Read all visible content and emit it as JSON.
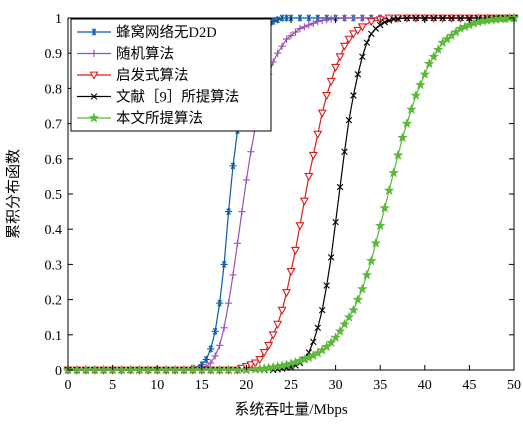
{
  "chart_data": {
    "type": "line",
    "xlabel": "系统吞吐量/Mbps",
    "ylabel": "累积分布函数",
    "xlim": [
      0,
      50
    ],
    "ylim": [
      0,
      1
    ],
    "xticks": [
      "0",
      "5",
      "10",
      "15",
      "20",
      "25",
      "30",
      "35",
      "40",
      "45",
      "50"
    ],
    "yticks": [
      "0",
      "0.1",
      "0.2",
      "0.3",
      "0.4",
      "0.5",
      "0.6",
      "0.7",
      "0.8",
      "0.9",
      "1"
    ],
    "grid": false,
    "legend_position": "top-left",
    "series": [
      {
        "name": "蜂窝网络无D2D",
        "color": "#0b5aa8",
        "marker": "asterisk",
        "x": [
          0,
          1,
          2,
          3,
          4,
          5,
          6,
          7,
          8,
          9,
          10,
          11,
          12,
          13,
          14,
          15,
          15.5,
          16,
          16.5,
          17,
          17.5,
          18,
          18.5,
          19,
          19.5,
          20,
          20.5,
          21,
          21.5,
          22,
          22.5,
          23,
          23.5,
          24,
          24.5,
          25,
          26,
          27,
          28,
          29,
          30,
          31,
          32,
          33,
          34,
          35,
          36,
          37,
          38,
          39,
          40,
          41,
          42,
          43,
          44,
          45,
          46,
          47,
          48,
          49,
          50
        ],
        "y": [
          0,
          0,
          0,
          0,
          0,
          0,
          0,
          0,
          0,
          0,
          0,
          0,
          0,
          0,
          0.005,
          0.015,
          0.03,
          0.06,
          0.11,
          0.19,
          0.3,
          0.45,
          0.58,
          0.68,
          0.76,
          0.83,
          0.88,
          0.92,
          0.95,
          0.97,
          0.98,
          0.99,
          0.995,
          1,
          1,
          1,
          1,
          1,
          1,
          1,
          1,
          1,
          1,
          1,
          1,
          1,
          1,
          1,
          1,
          1,
          1,
          1,
          1,
          1,
          1,
          1,
          1,
          1,
          1,
          1,
          1
        ]
      },
      {
        "name": "随机算法",
        "color": "#9a4fb4",
        "marker": "plus",
        "x": [
          0,
          1,
          2,
          3,
          4,
          5,
          6,
          7,
          8,
          9,
          10,
          11,
          12,
          13,
          14,
          15,
          15.5,
          16,
          16.5,
          17,
          17.5,
          18,
          18.5,
          19,
          19.5,
          20,
          20.5,
          21,
          21.5,
          22,
          22.5,
          23,
          23.5,
          24,
          24.5,
          25,
          25.5,
          26,
          26.5,
          27,
          27.5,
          28,
          28.5,
          29,
          29.5,
          30,
          31,
          32,
          33,
          34,
          35,
          36,
          37,
          38,
          39,
          40,
          41,
          42,
          43,
          44,
          45,
          46,
          47,
          48,
          49,
          50
        ],
        "y": [
          0,
          0,
          0,
          0,
          0,
          0,
          0,
          0,
          0,
          0,
          0,
          0,
          0,
          0,
          0,
          0.005,
          0.01,
          0.02,
          0.04,
          0.07,
          0.12,
          0.19,
          0.27,
          0.36,
          0.45,
          0.54,
          0.62,
          0.69,
          0.75,
          0.8,
          0.84,
          0.875,
          0.9,
          0.92,
          0.94,
          0.95,
          0.96,
          0.97,
          0.975,
          0.98,
          0.985,
          0.99,
          0.993,
          0.995,
          0.997,
          0.998,
          1,
          1,
          1,
          1,
          1,
          1,
          1,
          1,
          1,
          1,
          1,
          1,
          1,
          1,
          1,
          1,
          1,
          1,
          1,
          1
        ]
      },
      {
        "name": "启发式算法",
        "color": "#e01b1b",
        "marker": "triangle-down",
        "x": [
          0,
          1,
          2,
          3,
          4,
          5,
          6,
          7,
          8,
          9,
          10,
          11,
          12,
          13,
          14,
          15,
          16,
          17,
          18,
          19,
          19.5,
          20,
          20.5,
          21,
          21.5,
          22,
          22.5,
          23,
          23.5,
          24,
          24.5,
          25,
          25.5,
          26,
          26.5,
          27,
          27.5,
          28,
          28.5,
          29,
          29.5,
          30,
          30.5,
          31,
          31.5,
          32,
          32.5,
          33,
          34,
          35,
          36,
          37,
          38,
          39,
          40,
          41,
          42,
          43,
          44,
          45,
          46,
          47,
          48,
          49,
          50
        ],
        "y": [
          0,
          0,
          0,
          0,
          0,
          0,
          0,
          0,
          0,
          0,
          0,
          0,
          0,
          0,
          0,
          0,
          0,
          0,
          0,
          0,
          0.005,
          0.01,
          0.015,
          0.02,
          0.03,
          0.05,
          0.07,
          0.1,
          0.13,
          0.17,
          0.22,
          0.28,
          0.34,
          0.41,
          0.48,
          0.55,
          0.61,
          0.67,
          0.73,
          0.78,
          0.82,
          0.86,
          0.89,
          0.92,
          0.94,
          0.955,
          0.965,
          0.975,
          0.99,
          0.995,
          1,
          1,
          1,
          1,
          1,
          1,
          1,
          1,
          1,
          1,
          1,
          1,
          1,
          1,
          1
        ]
      },
      {
        "name": "文献［9］所提算法",
        "color": "#000000",
        "marker": "x",
        "x": [
          0,
          1,
          2,
          3,
          4,
          5,
          6,
          7,
          8,
          9,
          10,
          11,
          12,
          13,
          14,
          15,
          16,
          17,
          18,
          19,
          20,
          21,
          22,
          23,
          23.5,
          24,
          24.5,
          25,
          25.5,
          26,
          26.5,
          27,
          27.5,
          28,
          28.5,
          29,
          29.5,
          30,
          30.5,
          31,
          31.5,
          32,
          32.5,
          33,
          33.5,
          34,
          34.5,
          35,
          35.5,
          36,
          36.5,
          37,
          38,
          39,
          40,
          41,
          42,
          43,
          44,
          45,
          46,
          47,
          48,
          49,
          50
        ],
        "y": [
          0,
          0,
          0,
          0,
          0,
          0,
          0,
          0,
          0,
          0,
          0,
          0,
          0,
          0,
          0,
          0,
          0,
          0,
          0,
          0,
          0,
          0,
          0,
          0,
          0.002,
          0.004,
          0.006,
          0.009,
          0.013,
          0.02,
          0.03,
          0.05,
          0.08,
          0.12,
          0.17,
          0.24,
          0.32,
          0.42,
          0.52,
          0.62,
          0.71,
          0.78,
          0.84,
          0.89,
          0.93,
          0.955,
          0.97,
          0.98,
          0.988,
          0.993,
          0.996,
          0.998,
          1,
          1,
          1,
          1,
          1,
          1,
          1,
          1,
          1,
          1,
          1,
          1,
          1
        ]
      },
      {
        "name": "本文所提算法",
        "color": "#5cb83a",
        "marker": "star",
        "x": [
          0,
          1,
          2,
          3,
          4,
          5,
          6,
          7,
          8,
          9,
          10,
          11,
          12,
          13,
          14,
          15,
          16,
          17,
          18,
          19,
          20,
          21,
          21.5,
          22,
          22.5,
          23,
          23.5,
          24,
          24.5,
          25,
          25.5,
          26,
          26.5,
          27,
          27.5,
          28,
          28.5,
          29,
          29.5,
          30,
          30.5,
          31,
          31.5,
          32,
          32.5,
          33,
          33.5,
          34,
          34.5,
          35,
          35.5,
          36,
          36.5,
          37,
          37.5,
          38,
          38.5,
          39,
          39.5,
          40,
          40.5,
          41,
          41.5,
          42,
          42.5,
          43,
          43.5,
          44,
          44.5,
          45,
          45.5,
          46,
          46.5,
          47,
          47.5,
          48,
          48.5,
          49,
          49.5,
          50
        ],
        "y": [
          0,
          0,
          0,
          0,
          0,
          0,
          0,
          0,
          0,
          0,
          0,
          0,
          0,
          0,
          0,
          0,
          0,
          0,
          0,
          0,
          0,
          0.002,
          0.003,
          0.004,
          0.006,
          0.008,
          0.01,
          0.012,
          0.015,
          0.018,
          0.022,
          0.026,
          0.03,
          0.035,
          0.041,
          0.048,
          0.056,
          0.066,
          0.078,
          0.092,
          0.11,
          0.13,
          0.15,
          0.17,
          0.2,
          0.23,
          0.27,
          0.31,
          0.36,
          0.41,
          0.46,
          0.51,
          0.56,
          0.61,
          0.66,
          0.7,
          0.74,
          0.78,
          0.81,
          0.84,
          0.87,
          0.89,
          0.91,
          0.93,
          0.94,
          0.95,
          0.96,
          0.97,
          0.975,
          0.98,
          0.985,
          0.988,
          0.991,
          0.993,
          0.995,
          0.996,
          0.997,
          0.998,
          0.999,
          1
        ]
      }
    ]
  }
}
